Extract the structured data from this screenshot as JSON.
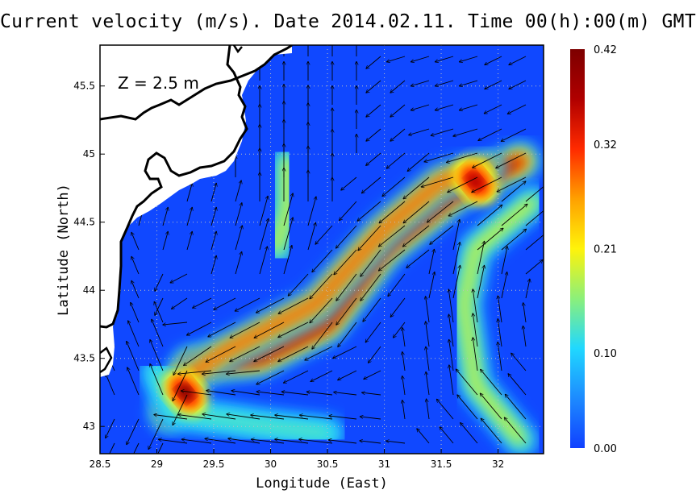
{
  "title": "Current velocity (m/s). Date 2014.02.11. Time 00(h):00(m) GMT",
  "depth_label": "Z = 2.5 m",
  "xlabel": "Longitude (East)",
  "ylabel": "Latitude (North)",
  "x_ticks": [
    "28.5",
    "29",
    "29.5",
    "30",
    "30.5",
    "31",
    "31.5",
    "32"
  ],
  "y_ticks": [
    "43",
    "43.5",
    "44",
    "44.5",
    "45",
    "45.5"
  ],
  "colorbar": {
    "ticks": [
      "0.00",
      "0.10",
      "0.21",
      "0.32",
      "0.42"
    ],
    "stops": [
      "#1040ff",
      "#1d8bff",
      "#20d8ff",
      "#8cf07a",
      "#fff30a",
      "#ffa000",
      "#ff2a00",
      "#b00000",
      "#7d0000"
    ]
  },
  "chart_data": {
    "type": "heatmap",
    "title": "Current velocity (m/s). Date 2014.02.11. Time 00(h):00(m) GMT",
    "xlabel": "Longitude (East)",
    "ylabel": "Latitude (North)",
    "xlim": [
      28.5,
      32.4
    ],
    "ylim": [
      42.8,
      45.8
    ],
    "zlim": [
      0.0,
      0.42
    ],
    "units": "m/s",
    "annotation": "Z = 2.5 m",
    "background_value": 0.03,
    "features": [
      {
        "kind": "jet",
        "path": [
          [
            29.1,
            43.1
          ],
          [
            29.3,
            43.45
          ],
          [
            29.9,
            43.5
          ],
          [
            30.5,
            43.75
          ],
          [
            31.0,
            44.3
          ],
          [
            31.6,
            44.7
          ],
          [
            32.2,
            44.95
          ]
        ],
        "max_speed": 0.4
      },
      {
        "kind": "jet",
        "path": [
          [
            29.25,
            43.35
          ],
          [
            29.6,
            43.55
          ],
          [
            30.4,
            43.9
          ],
          [
            31.0,
            44.45
          ],
          [
            31.5,
            44.8
          ],
          [
            31.9,
            44.9
          ]
        ],
        "max_speed": 0.3
      },
      {
        "kind": "eddy",
        "path": [
          [
            29.0,
            43.4
          ],
          [
            29.15,
            43.1
          ],
          [
            29.6,
            43.05
          ],
          [
            30.0,
            43.0
          ],
          [
            30.5,
            42.95
          ]
        ],
        "max_speed": 0.15
      },
      {
        "kind": "eddy",
        "path": [
          [
            30.15,
            44.95
          ],
          [
            30.15,
            44.6
          ],
          [
            30.05,
            44.3
          ]
        ],
        "max_speed": 0.2
      },
      {
        "kind": "eddy",
        "path": [
          [
            32.3,
            44.65
          ],
          [
            31.8,
            44.3
          ],
          [
            31.7,
            43.9
          ],
          [
            31.8,
            43.3
          ],
          [
            32.2,
            42.9
          ]
        ],
        "max_speed": 0.2
      },
      {
        "kind": "core",
        "at": [
          29.25,
          43.25
        ],
        "speed": 0.4
      },
      {
        "kind": "core",
        "at": [
          31.8,
          44.8
        ],
        "speed": 0.38
      }
    ],
    "grid": true
  }
}
